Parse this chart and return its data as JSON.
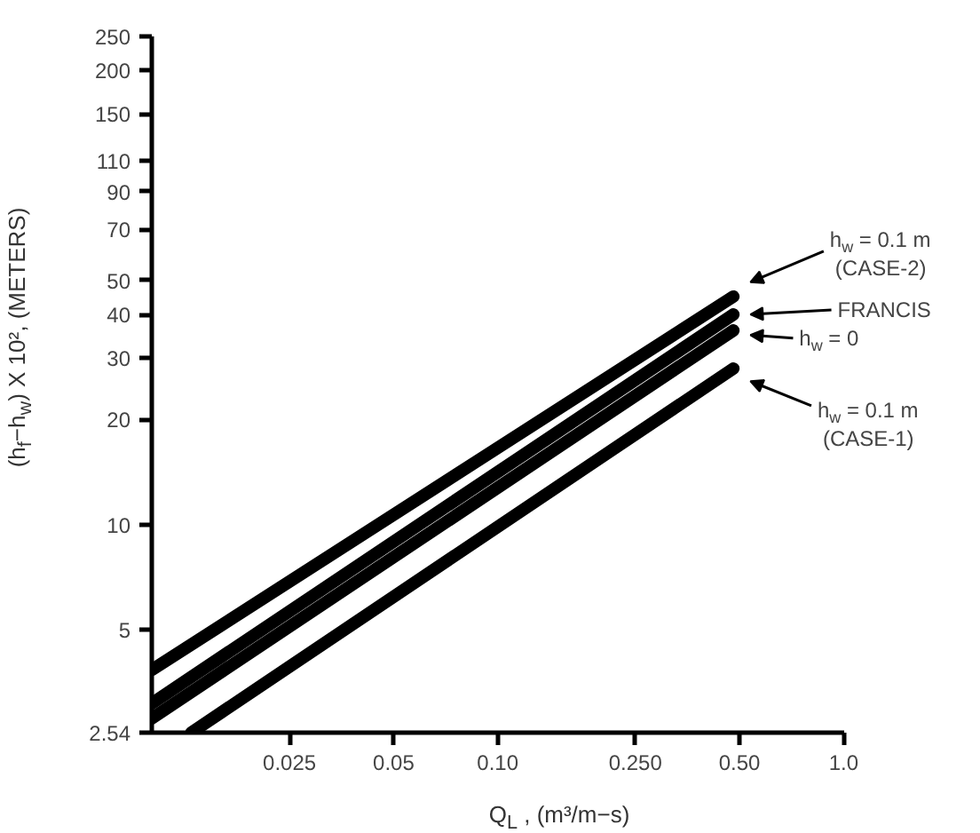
{
  "chart_data": {
    "type": "line",
    "xlabel": "Q$_{L}$ , (m³/m−s)",
    "ylabel": "(h$_{f}$−h$_{w}$) X 10², (METERS)",
    "log": "xy",
    "grid": false,
    "legend": "right",
    "marker": "none",
    "line_style": "solid",
    "xlim": [
      0.01,
      1.0
    ],
    "ylim": [
      2.54,
      250
    ],
    "xticks": [
      0.025,
      0.05,
      {
        "value": 0.1,
        "label": "0.10"
      },
      {
        "value": 0.25,
        "label": "0.250"
      },
      {
        "value": 0.5,
        "label": "0.50"
      },
      {
        "value": 1.0,
        "label": "1.0"
      }
    ],
    "yticks": [
      {
        "value": 2.54,
        "label": "2.54"
      },
      5,
      10,
      20,
      30,
      40,
      50,
      70,
      90,
      110,
      150,
      200,
      250
    ],
    "series": [
      {
        "name": "h$_{w}$ = 0.1 m\n(CASE-2)",
        "color": "#000000",
        "x": [
          0.01,
          0.48
        ],
        "values": [
          3.84,
          45
        ]
      },
      {
        "name": "FRANCIS",
        "color": "#000000",
        "x": [
          0.01,
          0.48
        ],
        "values": [
          3.08,
          40
        ]
      },
      {
        "name": "h$_{w}$ = 0",
        "color": "#000000",
        "x": [
          0.01,
          0.48
        ],
        "values": [
          2.79,
          36
        ]
      },
      {
        "name": "h$_{w}$ = 0.1 m\n(CASE-1)",
        "color": "#000000",
        "x": [
          0.013,
          0.48
        ],
        "values": [
          2.54,
          28
        ]
      }
    ]
  }
}
